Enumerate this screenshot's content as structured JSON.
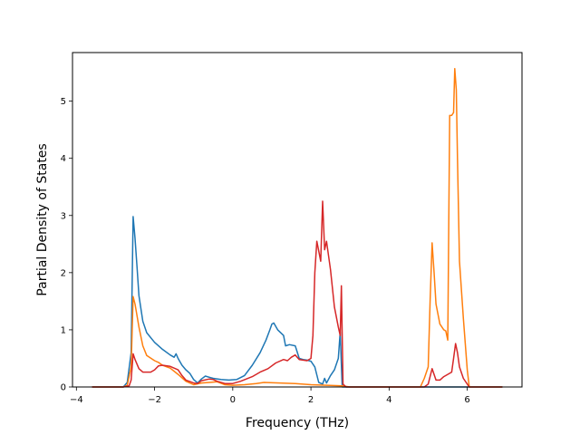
{
  "chart_data": {
    "type": "line",
    "title": "",
    "xlabel": "Frequency (THz)",
    "ylabel": "Partial Density of States",
    "xlim": [
      -4.1,
      7.4
    ],
    "ylim": [
      0,
      5.85
    ],
    "xticks": [
      -4,
      -2,
      0,
      2,
      4,
      6
    ],
    "xtick_labels": [
      "−4",
      "−2",
      "0",
      "2",
      "4",
      "6"
    ],
    "yticks": [
      0,
      1,
      2,
      3,
      4,
      5
    ],
    "ytick_labels": [
      "0",
      "1",
      "2",
      "3",
      "4",
      "5"
    ],
    "grid": false,
    "legend": "none",
    "series": [
      {
        "color": "#1f77b4",
        "points": [
          [
            -3.6,
            0
          ],
          [
            -2.8,
            0
          ],
          [
            -2.7,
            0.08
          ],
          [
            -2.6,
            0.6
          ],
          [
            -2.55,
            2.98
          ],
          [
            -2.5,
            2.6
          ],
          [
            -2.45,
            2.1
          ],
          [
            -2.4,
            1.6
          ],
          [
            -2.3,
            1.15
          ],
          [
            -2.2,
            0.95
          ],
          [
            -2.0,
            0.78
          ],
          [
            -1.8,
            0.66
          ],
          [
            -1.6,
            0.56
          ],
          [
            -1.5,
            0.52
          ],
          [
            -1.45,
            0.58
          ],
          [
            -1.4,
            0.5
          ],
          [
            -1.3,
            0.38
          ],
          [
            -1.2,
            0.3
          ],
          [
            -1.1,
            0.24
          ],
          [
            -1.0,
            0.13
          ],
          [
            -0.9,
            0.07
          ],
          [
            -0.8,
            0.14
          ],
          [
            -0.7,
            0.19
          ],
          [
            -0.6,
            0.17
          ],
          [
            -0.5,
            0.15
          ],
          [
            -0.3,
            0.13
          ],
          [
            -0.1,
            0.12
          ],
          [
            0.1,
            0.13
          ],
          [
            0.3,
            0.2
          ],
          [
            0.5,
            0.38
          ],
          [
            0.7,
            0.6
          ],
          [
            0.85,
            0.82
          ],
          [
            0.95,
            1.0
          ],
          [
            1.0,
            1.1
          ],
          [
            1.05,
            1.12
          ],
          [
            1.15,
            1.0
          ],
          [
            1.3,
            0.9
          ],
          [
            1.35,
            0.72
          ],
          [
            1.45,
            0.74
          ],
          [
            1.6,
            0.72
          ],
          [
            1.7,
            0.5
          ],
          [
            1.8,
            0.48
          ],
          [
            1.9,
            0.47
          ],
          [
            2.0,
            0.45
          ],
          [
            2.1,
            0.35
          ],
          [
            2.2,
            0.08
          ],
          [
            2.3,
            0.05
          ],
          [
            2.35,
            0.15
          ],
          [
            2.4,
            0.07
          ],
          [
            2.5,
            0.2
          ],
          [
            2.6,
            0.3
          ],
          [
            2.7,
            0.5
          ],
          [
            2.75,
            0.96
          ],
          [
            2.8,
            0
          ],
          [
            6.9,
            0
          ]
        ]
      },
      {
        "color": "#ff7f0e",
        "points": [
          [
            -3.6,
            0
          ],
          [
            -2.8,
            0
          ],
          [
            -2.7,
            0.03
          ],
          [
            -2.6,
            0.35
          ],
          [
            -2.55,
            1.58
          ],
          [
            -2.5,
            1.45
          ],
          [
            -2.4,
            1.05
          ],
          [
            -2.3,
            0.72
          ],
          [
            -2.2,
            0.55
          ],
          [
            -2.0,
            0.46
          ],
          [
            -1.9,
            0.43
          ],
          [
            -1.8,
            0.38
          ],
          [
            -1.6,
            0.33
          ],
          [
            -1.4,
            0.22
          ],
          [
            -1.2,
            0.1
          ],
          [
            -1.0,
            0.04
          ],
          [
            -0.8,
            0.07
          ],
          [
            -0.6,
            0.08
          ],
          [
            -0.4,
            0.09
          ],
          [
            -0.2,
            0.04
          ],
          [
            0.0,
            0.03
          ],
          [
            0.3,
            0.04
          ],
          [
            0.6,
            0.06
          ],
          [
            0.8,
            0.08
          ],
          [
            1.2,
            0.07
          ],
          [
            1.6,
            0.06
          ],
          [
            2.0,
            0.04
          ],
          [
            2.8,
            0.02
          ],
          [
            3.0,
            0
          ],
          [
            4.8,
            0
          ],
          [
            4.9,
            0.15
          ],
          [
            5.0,
            0.35
          ],
          [
            5.05,
            1.5
          ],
          [
            5.1,
            2.52
          ],
          [
            5.15,
            2.0
          ],
          [
            5.2,
            1.45
          ],
          [
            5.3,
            1.1
          ],
          [
            5.4,
            1.0
          ],
          [
            5.45,
            0.98
          ],
          [
            5.5,
            0.82
          ],
          [
            5.55,
            4.75
          ],
          [
            5.6,
            4.75
          ],
          [
            5.65,
            4.8
          ],
          [
            5.68,
            5.57
          ],
          [
            5.72,
            5.2
          ],
          [
            5.75,
            4.0
          ],
          [
            5.8,
            2.2
          ],
          [
            5.9,
            1.2
          ],
          [
            6.0,
            0.3
          ],
          [
            6.05,
            0
          ],
          [
            6.9,
            0
          ]
        ]
      },
      {
        "color": "#d62728",
        "points": [
          [
            -3.6,
            0
          ],
          [
            -2.8,
            0
          ],
          [
            -2.65,
            0.02
          ],
          [
            -2.6,
            0.12
          ],
          [
            -2.55,
            0.58
          ],
          [
            -2.5,
            0.48
          ],
          [
            -2.4,
            0.32
          ],
          [
            -2.3,
            0.26
          ],
          [
            -2.1,
            0.26
          ],
          [
            -2.0,
            0.3
          ],
          [
            -1.9,
            0.37
          ],
          [
            -1.8,
            0.38
          ],
          [
            -1.6,
            0.36
          ],
          [
            -1.4,
            0.3
          ],
          [
            -1.3,
            0.2
          ],
          [
            -1.2,
            0.12
          ],
          [
            -1.0,
            0.07
          ],
          [
            -0.9,
            0.06
          ],
          [
            -0.8,
            0.11
          ],
          [
            -0.6,
            0.14
          ],
          [
            -0.5,
            0.13
          ],
          [
            -0.4,
            0.1
          ],
          [
            -0.2,
            0.06
          ],
          [
            0.0,
            0.06
          ],
          [
            0.2,
            0.1
          ],
          [
            0.5,
            0.18
          ],
          [
            0.7,
            0.26
          ],
          [
            0.9,
            0.32
          ],
          [
            1.1,
            0.42
          ],
          [
            1.3,
            0.48
          ],
          [
            1.4,
            0.46
          ],
          [
            1.5,
            0.52
          ],
          [
            1.6,
            0.56
          ],
          [
            1.7,
            0.48
          ],
          [
            1.9,
            0.46
          ],
          [
            2.0,
            0.5
          ],
          [
            2.05,
            0.9
          ],
          [
            2.1,
            2.0
          ],
          [
            2.15,
            2.55
          ],
          [
            2.25,
            2.2
          ],
          [
            2.3,
            3.25
          ],
          [
            2.35,
            2.4
          ],
          [
            2.4,
            2.55
          ],
          [
            2.5,
            2.05
          ],
          [
            2.6,
            1.4
          ],
          [
            2.7,
            1.05
          ],
          [
            2.75,
            0.9
          ],
          [
            2.78,
            1.77
          ],
          [
            2.82,
            0.05
          ],
          [
            2.9,
            0
          ],
          [
            4.9,
            0
          ],
          [
            5.0,
            0.05
          ],
          [
            5.1,
            0.32
          ],
          [
            5.2,
            0.12
          ],
          [
            5.3,
            0.12
          ],
          [
            5.4,
            0.18
          ],
          [
            5.5,
            0.22
          ],
          [
            5.6,
            0.26
          ],
          [
            5.65,
            0.5
          ],
          [
            5.7,
            0.76
          ],
          [
            5.75,
            0.6
          ],
          [
            5.8,
            0.35
          ],
          [
            5.9,
            0.15
          ],
          [
            6.0,
            0.05
          ],
          [
            6.05,
            0
          ],
          [
            6.9,
            0
          ]
        ]
      }
    ]
  }
}
